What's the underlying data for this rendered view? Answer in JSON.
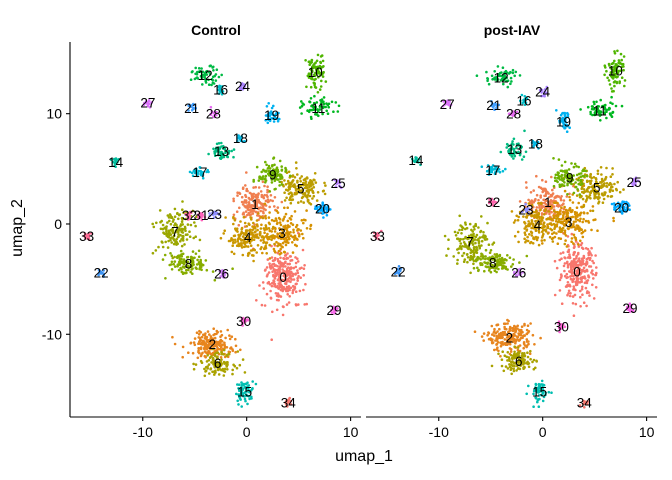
{
  "chart_data": {
    "type": "scatter",
    "title": "",
    "xlabel": "umap_1",
    "ylabel": "umap_2",
    "xlim": [
      -17,
      11
    ],
    "ylim": [
      -17.5,
      16.5
    ],
    "x_ticks": [
      -10,
      0,
      10
    ],
    "y_ticks": [
      10,
      0,
      -10
    ],
    "grid": false,
    "legend": "none",
    "facets": [
      {
        "name": "Control",
        "cluster_labels": [
          {
            "id": "0",
            "x": 3.5,
            "y": -4.8
          },
          {
            "id": "1",
            "x": 0.8,
            "y": 1.8
          },
          {
            "id": "2",
            "x": -3.3,
            "y": -10.9
          },
          {
            "id": "3",
            "x": 3.4,
            "y": -0.8
          },
          {
            "id": "4",
            "x": 0.1,
            "y": -1.2
          },
          {
            "id": "5",
            "x": 5.2,
            "y": 3.2
          },
          {
            "id": "6",
            "x": -2.8,
            "y": -12.6
          },
          {
            "id": "7",
            "x": -6.9,
            "y": -0.7
          },
          {
            "id": "8",
            "x": -5.6,
            "y": -3.6
          },
          {
            "id": "9",
            "x": 2.5,
            "y": 4.5
          },
          {
            "id": "10",
            "x": 6.6,
            "y": 13.8
          },
          {
            "id": "11",
            "x": 6.9,
            "y": 10.5
          },
          {
            "id": "12",
            "x": -4.0,
            "y": 13.5
          },
          {
            "id": "13",
            "x": -2.4,
            "y": 6.6
          },
          {
            "id": "14",
            "x": -12.6,
            "y": 5.6
          },
          {
            "id": "15",
            "x": -0.2,
            "y": -15.2
          },
          {
            "id": "16",
            "x": -2.5,
            "y": 12.2
          },
          {
            "id": "17",
            "x": -4.5,
            "y": 4.7
          },
          {
            "id": "18",
            "x": -0.6,
            "y": 7.8
          },
          {
            "id": "19",
            "x": 2.4,
            "y": 9.9
          },
          {
            "id": "20",
            "x": 7.3,
            "y": 1.4
          },
          {
            "id": "21",
            "x": -5.3,
            "y": 10.5
          },
          {
            "id": "22",
            "x": -14.0,
            "y": -4.4
          },
          {
            "id": "23",
            "x": -3.1,
            "y": 0.9
          },
          {
            "id": "24",
            "x": -0.4,
            "y": 12.5
          },
          {
            "id": "25",
            "x": 8.8,
            "y": 3.7
          },
          {
            "id": "26",
            "x": -2.4,
            "y": -4.5
          },
          {
            "id": "27",
            "x": -9.5,
            "y": 11.0
          },
          {
            "id": "28",
            "x": -3.2,
            "y": 10.0
          },
          {
            "id": "29",
            "x": 8.4,
            "y": -7.8
          },
          {
            "id": "30",
            "x": -0.3,
            "y": -8.8
          },
          {
            "id": "32",
            "x": -5.5,
            "y": 0.8
          },
          {
            "id": "33",
            "x": -15.4,
            "y": -1.1
          },
          {
            "id": "34",
            "x": 4.0,
            "y": -16.2
          },
          {
            "id": "31",
            "x": -4.4,
            "y": 0.8
          }
        ]
      },
      {
        "name": "post-IAV",
        "cluster_labels": [
          {
            "id": "0",
            "x": 3.3,
            "y": -4.3
          },
          {
            "id": "1",
            "x": 0.5,
            "y": 2.0
          },
          {
            "id": "2",
            "x": -3.2,
            "y": -10.3
          },
          {
            "id": "3",
            "x": 2.5,
            "y": 0.2
          },
          {
            "id": "4",
            "x": -0.5,
            "y": -0.1
          },
          {
            "id": "5",
            "x": 5.2,
            "y": 3.3
          },
          {
            "id": "6",
            "x": -2.3,
            "y": -12.4
          },
          {
            "id": "7",
            "x": -7.0,
            "y": -1.6
          },
          {
            "id": "8",
            "x": -4.8,
            "y": -3.5
          },
          {
            "id": "9",
            "x": 2.6,
            "y": 4.2
          },
          {
            "id": "10",
            "x": 7.0,
            "y": 13.9
          },
          {
            "id": "11",
            "x": 5.5,
            "y": 10.3
          },
          {
            "id": "12",
            "x": -4.0,
            "y": 13.3
          },
          {
            "id": "13",
            "x": -2.7,
            "y": 6.8
          },
          {
            "id": "14",
            "x": -12.2,
            "y": 5.8
          },
          {
            "id": "15",
            "x": -0.3,
            "y": -15.2
          },
          {
            "id": "16",
            "x": -1.8,
            "y": 11.2
          },
          {
            "id": "17",
            "x": -4.8,
            "y": 4.9
          },
          {
            "id": "18",
            "x": -0.7,
            "y": 7.3
          },
          {
            "id": "19",
            "x": 2.0,
            "y": 9.3
          },
          {
            "id": "20",
            "x": 7.6,
            "y": 1.5
          },
          {
            "id": "21",
            "x": -4.7,
            "y": 10.8
          },
          {
            "id": "22",
            "x": -13.9,
            "y": -4.3
          },
          {
            "id": "23",
            "x": -1.6,
            "y": 1.3
          },
          {
            "id": "24",
            "x": 0.0,
            "y": 12.0
          },
          {
            "id": "25",
            "x": 8.8,
            "y": 3.8
          },
          {
            "id": "26",
            "x": -2.3,
            "y": -4.4
          },
          {
            "id": "27",
            "x": -9.2,
            "y": 10.9
          },
          {
            "id": "28",
            "x": -2.8,
            "y": 10.0
          },
          {
            "id": "29",
            "x": 8.4,
            "y": -7.6
          },
          {
            "id": "30",
            "x": 1.8,
            "y": -9.3
          },
          {
            "id": "32",
            "x": -4.8,
            "y": 2.0
          },
          {
            "id": "33",
            "x": -15.9,
            "y": -1.1
          },
          {
            "id": "34",
            "x": 4.0,
            "y": -16.2
          }
        ]
      }
    ],
    "cluster_colors": {
      "0": "#F8766D",
      "1": "#F07F50",
      "2": "#E7851E",
      "3": "#D69100",
      "4": "#CA9700",
      "5": "#BB9D00",
      "6": "#AAA200",
      "7": "#9BA700",
      "8": "#87AD00",
      "9": "#6FB100",
      "10": "#4FB500",
      "11": "#00B820",
      "12": "#00BA45",
      "13": "#00BB81",
      "14": "#00BD9E",
      "15": "#00BEB1",
      "16": "#00BDC6",
      "17": "#00BBD7",
      "18": "#00B8E5",
      "19": "#00B1F0",
      "20": "#00A9FF",
      "21": "#419FFF",
      "22": "#3D94F5",
      "23": "#8E8EFF",
      "24": "#A77EFF",
      "25": "#B983FF",
      "26": "#CB79F5",
      "27": "#DB72FB",
      "28": "#E76BF3",
      "29": "#F465E7",
      "30": "#FC61D5",
      "31": "#FF62BC",
      "32": "#FF65AC",
      "33": "#FE6A94",
      "34": "#F8766D"
    }
  }
}
